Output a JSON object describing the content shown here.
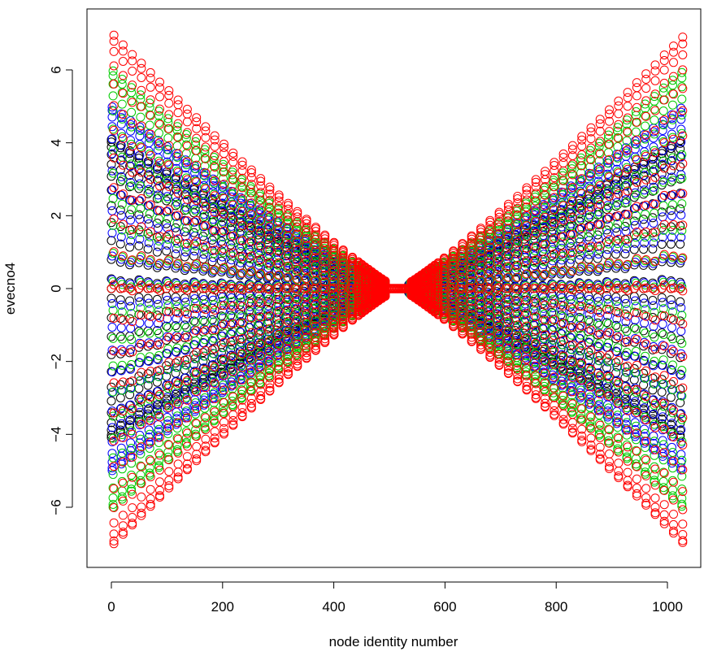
{
  "chart_data": {
    "type": "scatter",
    "title": "",
    "xlabel": "node identity number",
    "ylabel": "evecno4",
    "xlim": [
      -25,
      1050
    ],
    "ylim": [
      -7.5,
      7.5
    ],
    "x_ticks": [
      0,
      200,
      400,
      600,
      800,
      1000
    ],
    "y_ticks": [
      -6,
      -4,
      -2,
      0,
      2,
      4,
      6
    ],
    "x_tick_labels": [
      "0",
      "200",
      "400",
      "600",
      "800",
      "1000"
    ],
    "y_tick_labels": [
      "−6",
      "−4",
      "−2",
      "0",
      "2",
      "4",
      "6"
    ],
    "grid": false,
    "legend": "none",
    "marker": "open-circle",
    "series": [
      {
        "color": "#000000",
        "amplitude": 4.1,
        "x_start": 0,
        "x_end": 1023
      },
      {
        "color": "#0000ff",
        "amplitude": 5.0,
        "x_start": 0,
        "x_end": 1023
      },
      {
        "color": "#00cc00",
        "amplitude": 6.0,
        "x_start": 0,
        "x_end": 1023
      },
      {
        "color": "#ff0000",
        "amplitude": 7.0,
        "x_start": 0,
        "x_end": 1023
      }
    ],
    "center_gap": [
      490,
      535
    ],
    "center_dense": [
      440,
      585
    ],
    "points_per_column": 24,
    "column_spacing": 16.5,
    "value_at_zero": 0
  }
}
